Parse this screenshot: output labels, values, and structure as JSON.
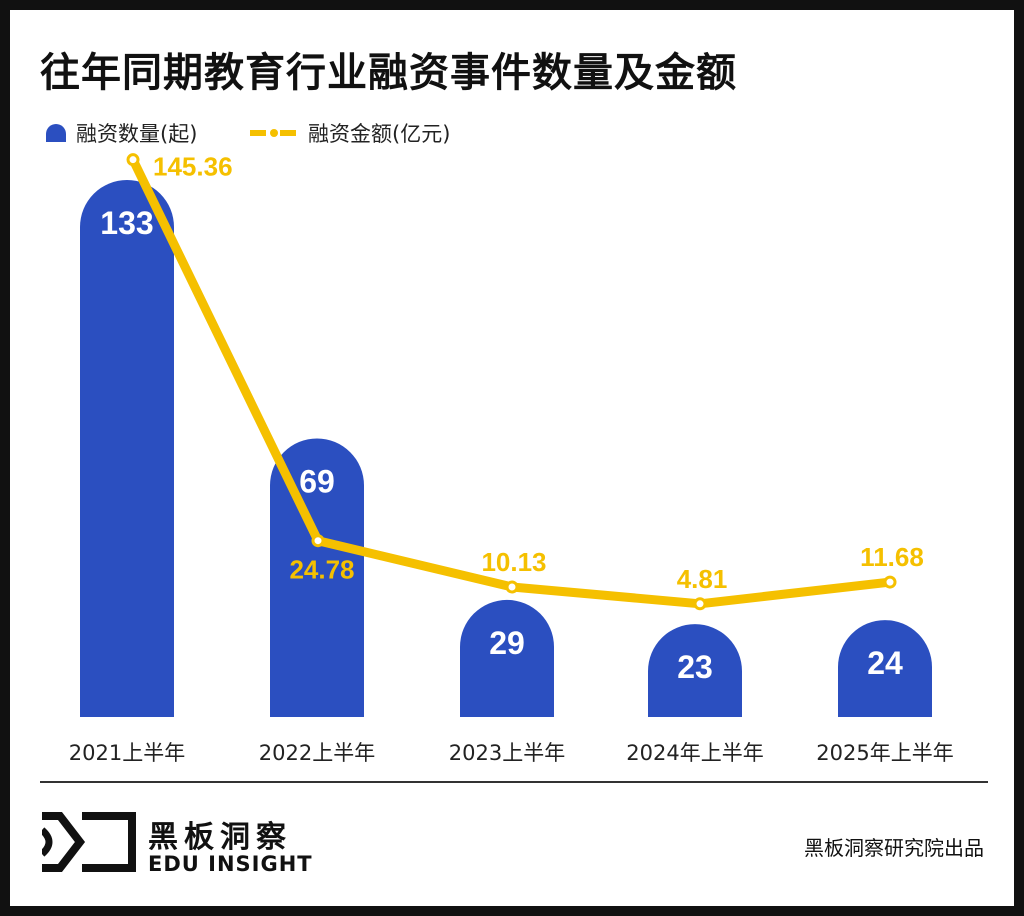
{
  "title": "往年同期教育行业融资事件数量及金额",
  "footer": {
    "brand_cn": "黑板洞察",
    "brand_en": "EDU INSIGHT",
    "credit": "黑板洞察研究院出品"
  },
  "chart_data": {
    "type": "bar+line",
    "title": "往年同期教育行业融资事件数量及金额",
    "categories": [
      "2021上半年",
      "2022上半年",
      "2023上半年",
      "2024年上半年",
      "2025年上半年"
    ],
    "legend_position": "top-left",
    "grid": false,
    "series": [
      {
        "name": "融资数量(起)",
        "type": "bar",
        "color": "#2b4fc0",
        "values": [
          133,
          69,
          29,
          23,
          24
        ]
      },
      {
        "name": "融资金额(亿元)",
        "type": "line",
        "color": "#f5c000",
        "values": [
          145.36,
          24.78,
          10.13,
          4.81,
          11.68
        ]
      }
    ]
  }
}
